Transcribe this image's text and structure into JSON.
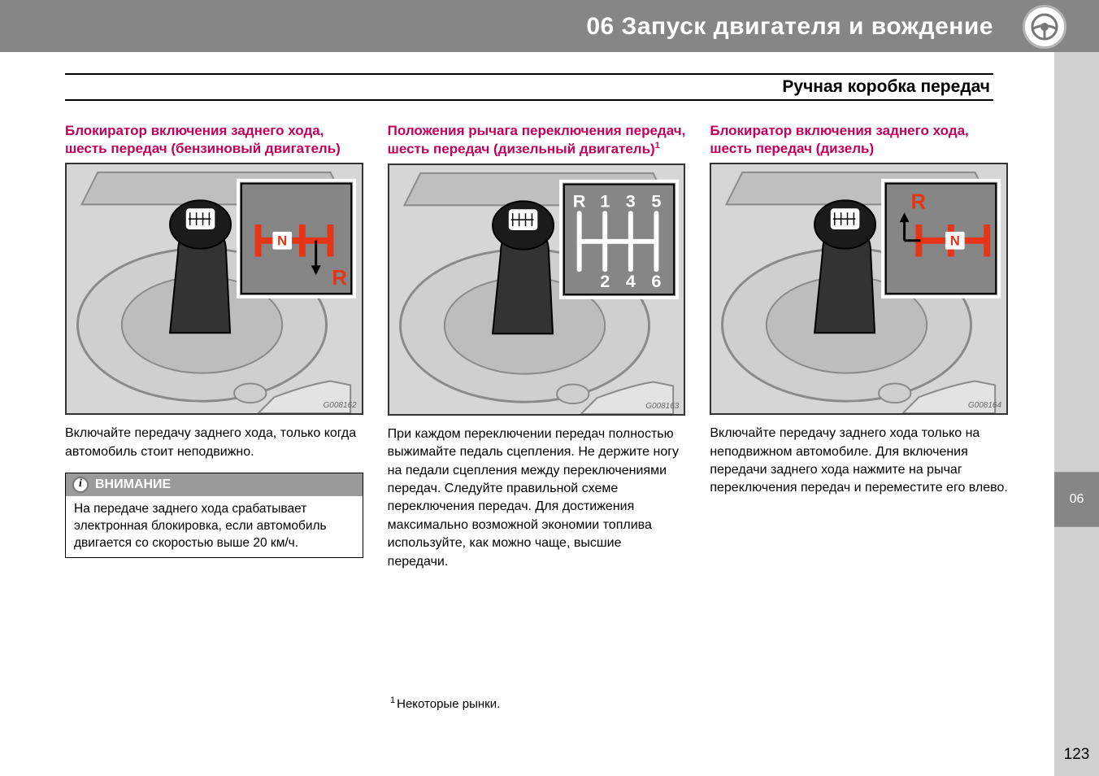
{
  "header": {
    "chapter_title": "06 Запуск двигателя и вождение"
  },
  "subheader": "Ручная коробка передач",
  "side_tab": "06",
  "page_number": "123",
  "columns": [
    {
      "heading": "Блокиратор включения заднего хода, шесть передач (бензиновый двигатель)",
      "figure_id": "G008162",
      "body": "Включайте передачу заднего хода, только когда автомобиль стоит неподвижно.",
      "note_title": "ВНИМАНИЕ",
      "note_body": "На передаче заднего хода срабатывает электронная блокировка, если автомобиль двигается со скоростью выше 20 км/ч.",
      "overlay": {
        "type": "petrol",
        "N": "N",
        "R": "R",
        "accent": "#e53516"
      }
    },
    {
      "heading": "Положения рычага переключения передач, шесть передач (дизельный двигатель)",
      "heading_sup": "1",
      "figure_id": "G008163",
      "body": "При каждом переключении передач полностью выжимайте педаль сцепления. Не держите ногу на педали сцепления между переключениями передач. Следуйте правильной схеме переключения передач. Для достижения максимально возможной экономии топлива используйте, как можно чаще, высшие передачи.",
      "overlay": {
        "type": "gears",
        "labels": [
          "R",
          "1",
          "3",
          "5",
          "2",
          "4",
          "6"
        ],
        "accent": "#ffffff"
      }
    },
    {
      "heading": "Блокиратор включения заднего хода, шесть передач (дизель)",
      "figure_id": "G008164",
      "body": "Включайте передачу заднего хода только на неподвижном автомобиле. Для включения передачи заднего хода нажмите на рычаг переключения передач и переместите его влево.",
      "overlay": {
        "type": "diesel",
        "N": "N",
        "R": "R",
        "accent": "#e53516"
      }
    }
  ],
  "footnote": {
    "mark": "1",
    "text": "Некоторые рынки."
  }
}
